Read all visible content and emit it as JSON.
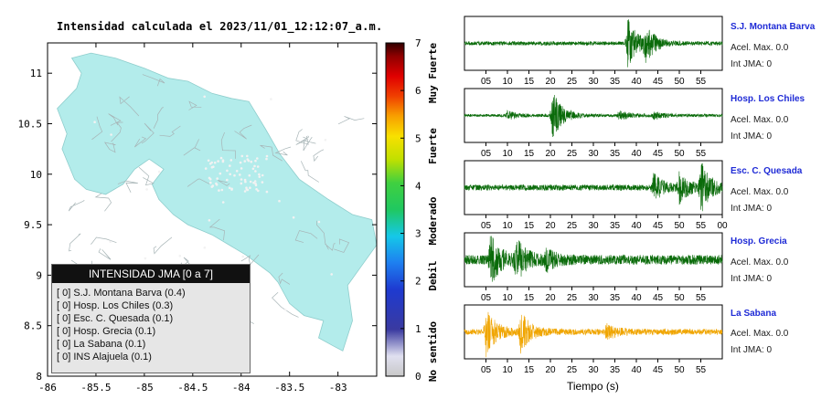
{
  "map": {
    "title": "Intensidad calculada el 2023/11/01_12:12:07_a.m.",
    "x_ticks": [
      "-86",
      "-85.5",
      "-85",
      "-84.5",
      "-84",
      "-83.5",
      "-83"
    ],
    "y_ticks": [
      "11",
      "10.5",
      "10",
      "9.5",
      "9",
      "8.5",
      "8"
    ],
    "land_color": "#b3eceb",
    "legend": {
      "title": "INTENSIDAD JMA [0 a 7]",
      "items": [
        "[ 0]  S.J. Montana Barva (0.4)",
        "[ 0]  Hosp. Los Chiles (0.3)",
        "[ 0]  Esc. C. Quesada (0.1)",
        "[ 0]  Hosp. Grecia (0.1)",
        "[ 0]  La Sabana (0.1)",
        "[ 0]  INS Alajuela (0.1)"
      ]
    }
  },
  "colorbar": {
    "ticks": [
      "7",
      "6",
      "5",
      "4",
      "3",
      "2",
      "1",
      "0"
    ],
    "labels": [
      "Muy Fuerte",
      "Fuerte",
      "Moderado",
      "Debil",
      "No sentido"
    ]
  },
  "chart_data": {
    "type": "line",
    "xlabel": "Tiempo (s)",
    "x_ticks": [
      [
        "05",
        "10",
        "15",
        "20",
        "25",
        "30",
        "35",
        "40",
        "45",
        "50",
        "55"
      ],
      [
        "05",
        "10",
        "15",
        "20",
        "25",
        "30",
        "35",
        "40",
        "45",
        "50",
        "55"
      ],
      [
        "05",
        "10",
        "15",
        "20",
        "25",
        "30",
        "35",
        "40",
        "45",
        "50",
        "55",
        "00"
      ],
      [
        "05",
        "10",
        "15",
        "20",
        "25",
        "30",
        "35",
        "40",
        "45",
        "50",
        "55"
      ],
      [
        "05",
        "10",
        "15",
        "20",
        "25",
        "30",
        "35",
        "40",
        "45",
        "50",
        "55"
      ]
    ],
    "series": [
      {
        "name": "S.J. Montana Barva",
        "color": "#0a6b0a",
        "acc_label": "Acel. Max. 0.0",
        "int_label": "Int JMA: 0",
        "burst_times": [
          38,
          42
        ],
        "burst_amp": [
          1.0,
          0.7
        ],
        "noise": 0.08
      },
      {
        "name": "Hosp. Los Chiles",
        "color": "#0a6b0a",
        "acc_label": "Acel. Max. 0.0",
        "int_label": "Int JMA: 0",
        "burst_times": [
          20.5,
          10,
          36,
          44
        ],
        "burst_amp": [
          1.0,
          0.18,
          0.18,
          0.15
        ],
        "noise": 0.06
      },
      {
        "name": "Esc. C. Quesada",
        "color": "#0a6b0a",
        "acc_label": "Acel. Max. 0.0",
        "int_label": "Int JMA: 0",
        "burst_times": [
          44,
          50,
          55
        ],
        "burst_amp": [
          0.55,
          0.6,
          1.0
        ],
        "noise": 0.12
      },
      {
        "name": "Hosp. Grecia",
        "color": "#0a6b0a",
        "acc_label": "Acel. Max. 0.0",
        "int_label": "Int JMA: 0",
        "burst_times": [
          6,
          12,
          19
        ],
        "burst_amp": [
          1.0,
          0.8,
          0.35
        ],
        "noise": 0.2
      },
      {
        "name": "La Sabana",
        "color": "#f0a500",
        "acc_label": "Acel. Max. 0.0",
        "int_label": "Int JMA: 0",
        "burst_times": [
          5,
          13,
          33
        ],
        "burst_amp": [
          1.0,
          0.8,
          0.3
        ],
        "noise": 0.12
      }
    ]
  }
}
